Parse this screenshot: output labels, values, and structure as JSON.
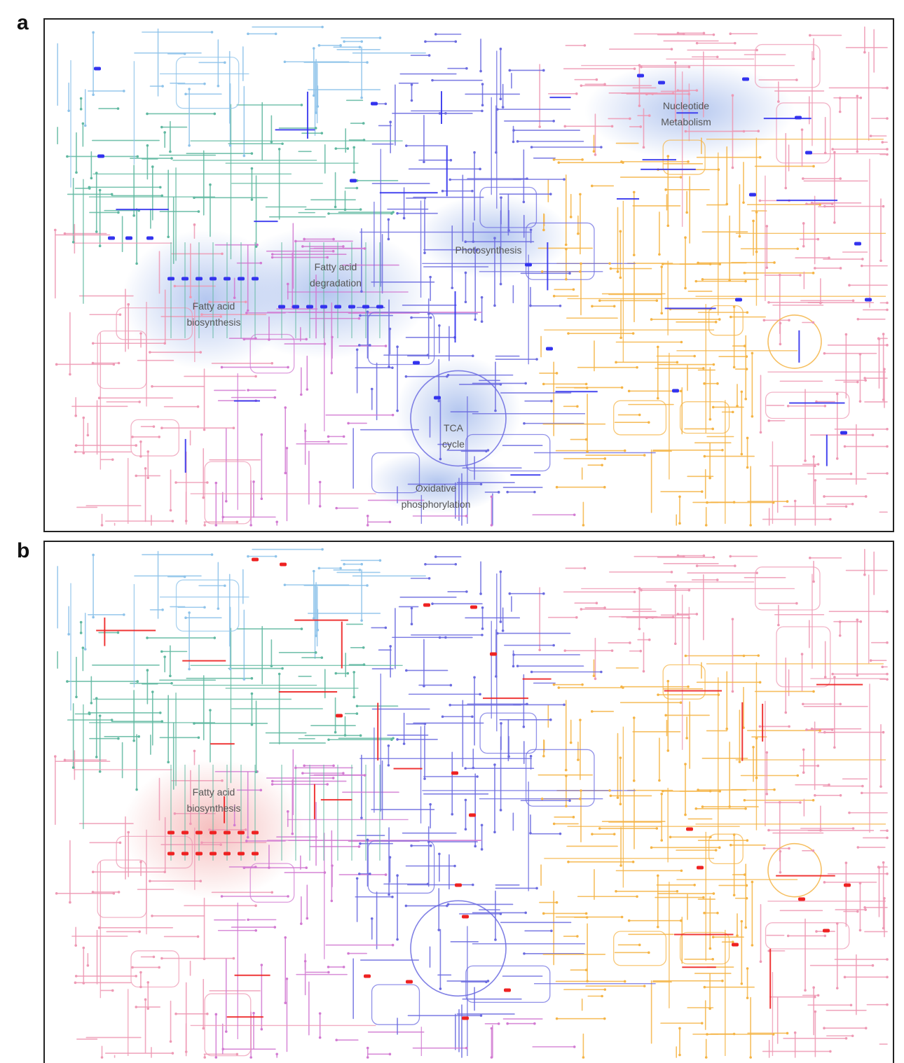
{
  "panels": [
    {
      "letter": "a",
      "highlight_color": "#3333ee",
      "glow_color": "#9bb4ea",
      "regions": [
        {
          "id": "nucleotide",
          "label": "Nucleotide\nMetabolism"
        },
        {
          "id": "photosynthesis",
          "label": "Photosynthesis"
        },
        {
          "id": "fatty-deg",
          "label": "Fatty acid\ndegradation"
        },
        {
          "id": "fatty-bio",
          "label": "Fatty acid\nbiosynthesis"
        },
        {
          "id": "tca",
          "label": "TCA\ncycle"
        },
        {
          "id": "oxphos",
          "label": "Oxidative\nphosphorylation"
        }
      ]
    },
    {
      "letter": "b",
      "highlight_color": "#ee2222",
      "glow_color": "#f2a8a8",
      "regions": [
        {
          "id": "fatty-bio",
          "label": "Fatty acid\nbiosynthesis"
        }
      ]
    }
  ],
  "pathway_colors": {
    "lipid": "#8ec3ea",
    "amino": "#5fb8a0",
    "energy": "#6b6be0",
    "carbohydrate": "#f5b445",
    "nucleotide": "#ee99b4",
    "other": "#d27ad2"
  }
}
